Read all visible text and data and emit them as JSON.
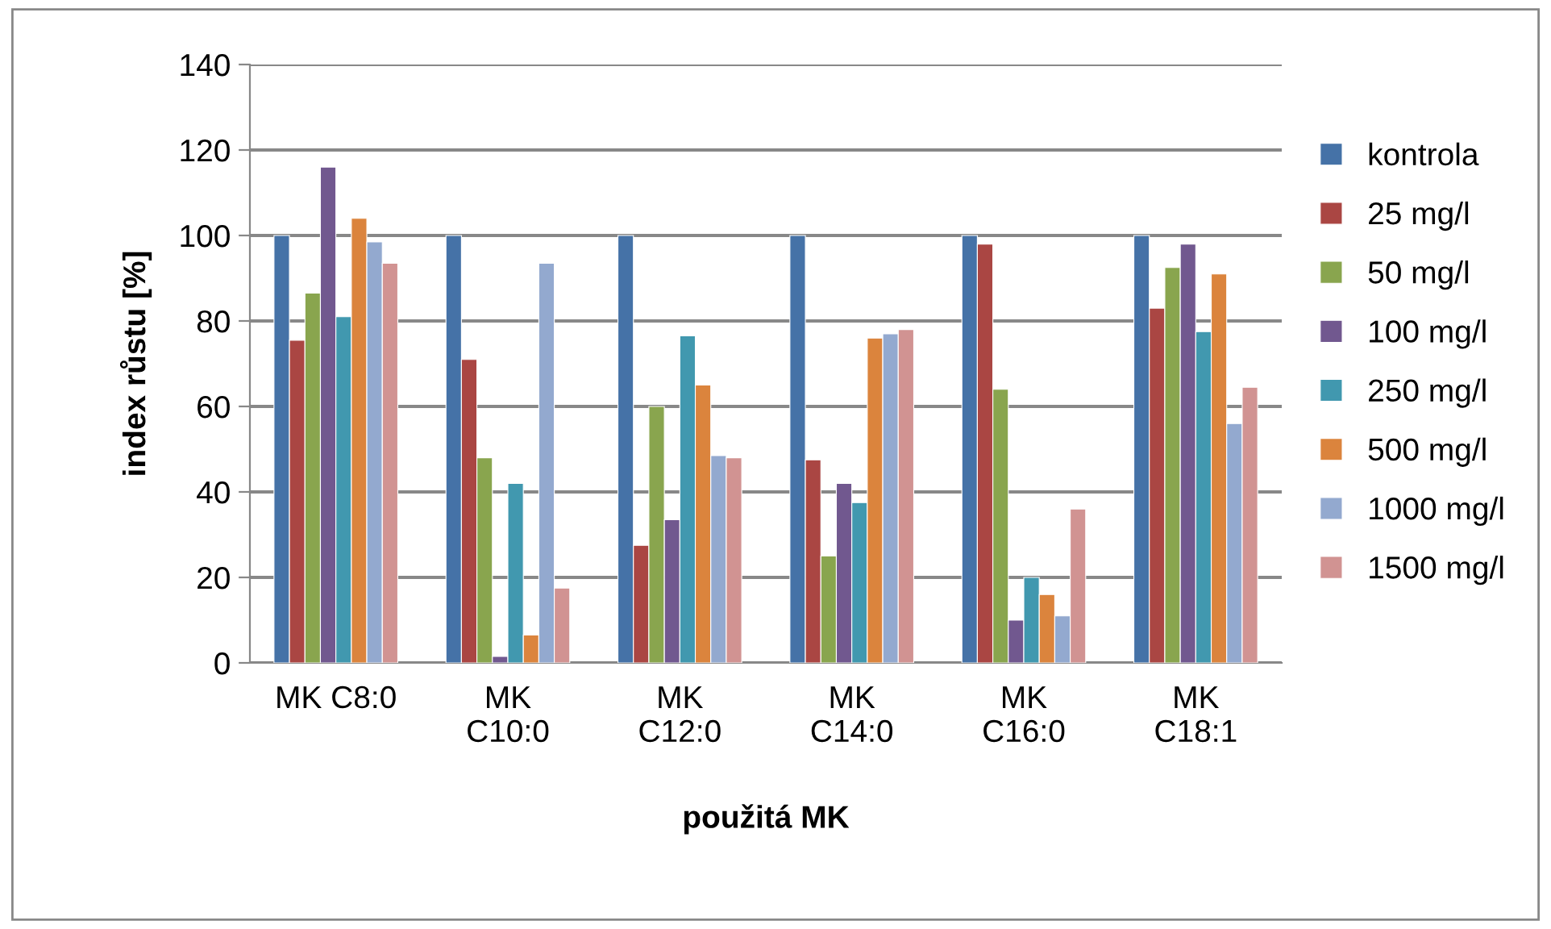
{
  "chart_data": {
    "type": "bar",
    "xlabel": "použitá MK",
    "ylabel": "index růstu [%]",
    "categories": [
      "MK C8:0",
      "MK\nC10:0",
      "MK\nC12:0",
      "MK\nC14:0",
      "MK\nC16:0",
      "MK\nC18:1"
    ],
    "series": [
      {
        "name": "kontrola",
        "color": "#4572a7",
        "values": [
          100,
          100,
          100,
          100,
          100,
          100
        ]
      },
      {
        "name": "25 mg/l",
        "color": "#aa4643",
        "values": [
          75.5,
          71,
          27.5,
          47.5,
          98,
          83
        ]
      },
      {
        "name": "50 mg/l",
        "color": "#89a54e",
        "values": [
          86.5,
          48,
          60,
          25,
          64,
          92.5
        ]
      },
      {
        "name": "100 mg/l",
        "color": "#71588f",
        "values": [
          116,
          1.5,
          33.5,
          42,
          10,
          98
        ]
      },
      {
        "name": "250 mg/l",
        "color": "#4198af",
        "values": [
          81,
          42,
          76.5,
          37.5,
          20,
          77.5
        ]
      },
      {
        "name": "500 mg/l",
        "color": "#db843d",
        "values": [
          104,
          6.5,
          65,
          76,
          16,
          91
        ]
      },
      {
        "name": "1000 mg/l",
        "color": "#93a9cf",
        "values": [
          98.5,
          93.5,
          48.5,
          77,
          11,
          56
        ]
      },
      {
        "name": "1500 mg/l",
        "color": "#d19392",
        "values": [
          93.5,
          17.5,
          48,
          78,
          36,
          64.5
        ]
      }
    ],
    "ylim": [
      0,
      140
    ],
    "yticks": [
      0,
      20,
      40,
      60,
      80,
      100,
      120,
      140
    ],
    "grid": "y",
    "legend": "right"
  }
}
